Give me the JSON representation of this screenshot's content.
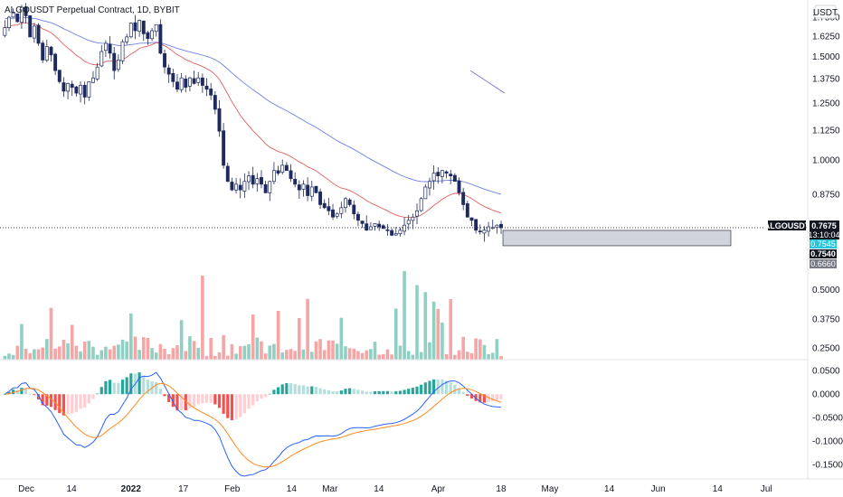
{
  "header": {
    "title": "ALGOUSDT Perpetual Contract, 1D, BYBIT",
    "currency": "USDT"
  },
  "colors": {
    "up": "#ffffff",
    "down": "#1e2a5e",
    "ema_fast": "#e06060",
    "ema_slow": "#6f7fe8",
    "vol_up": "#8fd0c2",
    "vol_down": "#f4a5a5",
    "macd_line": "#2962ff",
    "signal_line": "#ff8a1f",
    "hist_up": "#26a69a",
    "hist_up_weak": "#b2dfdb",
    "hist_down": "#ef5350",
    "hist_down_weak": "#ffcdd2",
    "zone": "#d1d4dc",
    "last_price_bg": "#131722",
    "teal_badge": "#26c6da",
    "gray_badge": "#787b86"
  },
  "chart_data": [
    {
      "type": "candlestick",
      "pane": "price",
      "title": "ALGOUSDT Perpetual Contract, 1D, BYBIT",
      "ylabel": "USDT",
      "scale": "log",
      "ylim": [
        0.72,
        1.82
      ],
      "y_ticks": [
        "1.7500",
        "1.6250",
        "1.5000",
        "1.3750",
        "1.2500",
        "1.1250",
        "1.0000",
        "0.8750"
      ],
      "x_ticks": [
        "Dec",
        "14",
        "2022",
        "17",
        "Feb",
        "14",
        "Mar",
        "14",
        "Apr",
        "18",
        "May",
        "14",
        "Jun",
        "14",
        "Jul"
      ],
      "closes": [
        1.68,
        1.75,
        1.78,
        1.72,
        1.82,
        1.76,
        1.62,
        1.69,
        1.58,
        1.48,
        1.56,
        1.51,
        1.42,
        1.36,
        1.31,
        1.35,
        1.33,
        1.3,
        1.34,
        1.28,
        1.36,
        1.38,
        1.44,
        1.53,
        1.58,
        1.52,
        1.42,
        1.48,
        1.59,
        1.62,
        1.71,
        1.66,
        1.73,
        1.64,
        1.61,
        1.66,
        1.7,
        1.52,
        1.44,
        1.4,
        1.36,
        1.32,
        1.38,
        1.33,
        1.38,
        1.35,
        1.38,
        1.34,
        1.32,
        1.29,
        1.22,
        1.12,
        0.98,
        0.92,
        0.89,
        0.91,
        0.89,
        0.92,
        0.94,
        0.91,
        0.93,
        0.91,
        0.88,
        0.92,
        0.96,
        0.95,
        0.98,
        0.96,
        0.93,
        0.91,
        0.89,
        0.91,
        0.87,
        0.9,
        0.88,
        0.84,
        0.83,
        0.82,
        0.8,
        0.81,
        0.83,
        0.86,
        0.84,
        0.81,
        0.79,
        0.78,
        0.76,
        0.77,
        0.78,
        0.77,
        0.765,
        0.76,
        0.745,
        0.75,
        0.76,
        0.775,
        0.79,
        0.8,
        0.82,
        0.86,
        0.9,
        0.92,
        0.95,
        0.94,
        0.96,
        0.95,
        0.94,
        0.92,
        0.88,
        0.84,
        0.8,
        0.79,
        0.76,
        0.755,
        0.76,
        0.77,
        0.768,
        0.775,
        0.7675
      ],
      "last_price": "0.7675",
      "countdown": "13:10:04",
      "ema_fast_value": "0.7545",
      "ema_slow_value": "0.7540",
      "zone_low": "0.6660",
      "symbol": "ALGOUSDT",
      "grid": false
    },
    {
      "type": "bar",
      "pane": "volume",
      "ylim": [
        0.2,
        0.58
      ],
      "y_ticks": [
        "0.5000",
        "0.3750",
        "0.2500"
      ],
      "grid": false
    },
    {
      "type": "line",
      "pane": "macd",
      "series": [
        {
          "kind": "histogram"
        },
        {
          "kind": "macd"
        },
        {
          "kind": "signal"
        }
      ],
      "ylim": [
        -0.165,
        0.062
      ],
      "y_ticks": [
        "0.0500",
        "0.0000",
        "-0.0500",
        "-0.1000",
        "-0.1500"
      ],
      "grid": false
    }
  ]
}
